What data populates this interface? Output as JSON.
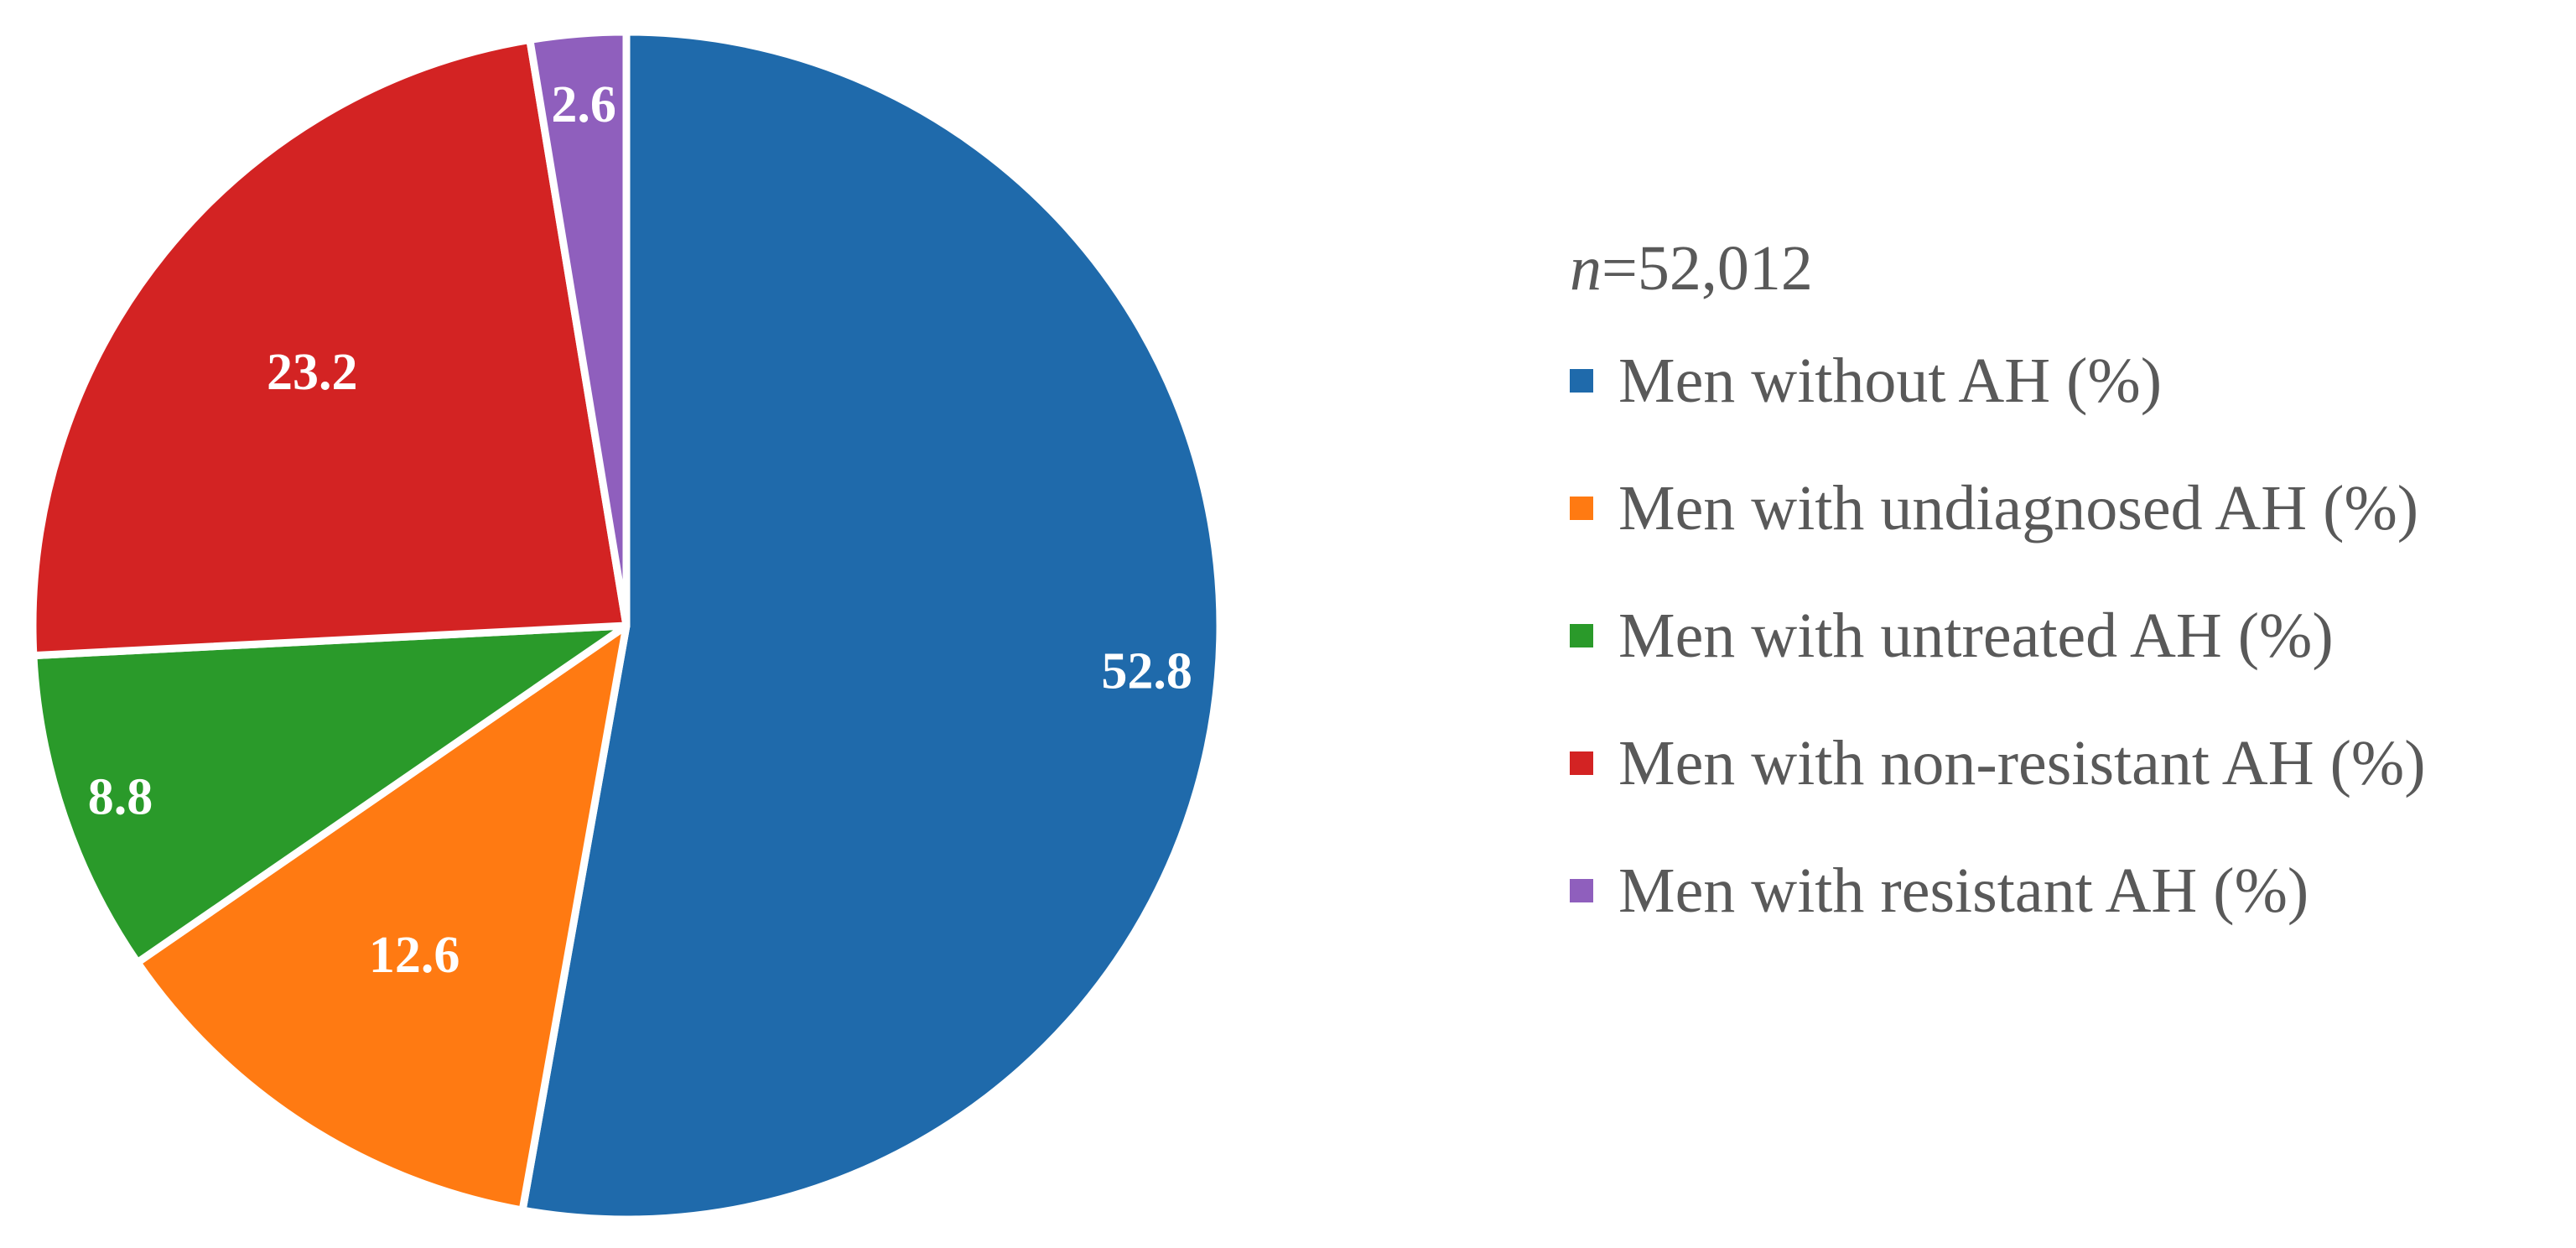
{
  "chart_data": {
    "type": "pie",
    "title": "",
    "sample_size": {
      "variable": "n",
      "rest": "=52,012"
    },
    "slices": [
      {
        "label": "Men without AH (%)",
        "value": 52.8,
        "value_text": "52.8",
        "color": "#1f6aab"
      },
      {
        "label": "Men with undiagnosed AH (%)",
        "value": 12.6,
        "value_text": "12.6",
        "color": "#ff7a12"
      },
      {
        "label": "Men with untreated AH (%)",
        "value": 8.8,
        "value_text": "8.8",
        "color": "#2a9a2a"
      },
      {
        "label": "Men with non-resistant AH (%)",
        "value": 23.2,
        "value_text": "23.2",
        "color": "#d32323"
      },
      {
        "label": "Men with resistant AH (%)",
        "value": 2.6,
        "value_text": "2.6",
        "color": "#8f5fbd"
      }
    ],
    "start_angle": "12 o'clock",
    "direction": "clockwise",
    "legend_position": "right"
  }
}
